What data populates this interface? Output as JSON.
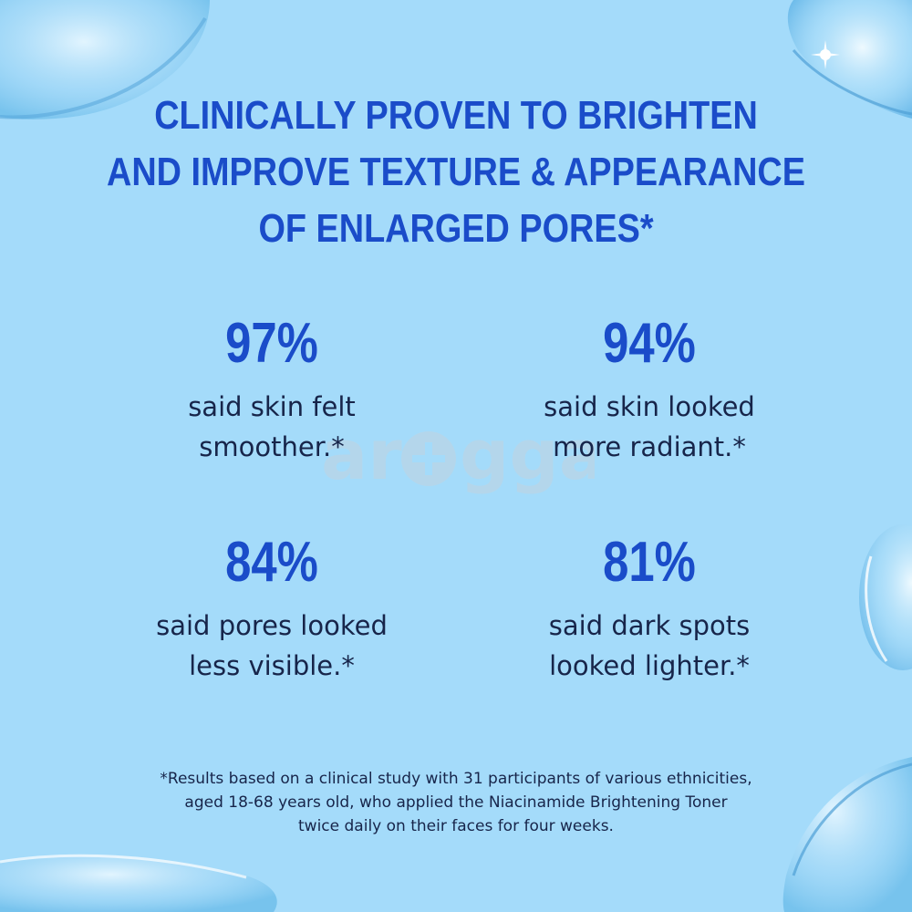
{
  "headline": {
    "lines": [
      "CLINICALLY PROVEN TO BRIGHTEN",
      "AND IMPROVE TEXTURE & APPEARANCE",
      "OF ENLARGED PORES*"
    ]
  },
  "stats": [
    {
      "value": "97%",
      "description": "said skin felt\nsmoother.*"
    },
    {
      "value": "94%",
      "description": "said skin looked\nmore radiant.*"
    },
    {
      "value": "84%",
      "description": "said pores looked\nless visible.*"
    },
    {
      "value": "81%",
      "description": "said dark spots\nlooked lighter.*"
    }
  ],
  "watermark": {
    "text": "arogga",
    "icon": "plus-circle-icon"
  },
  "footnote": {
    "lines": [
      "*Results based on a clinical study with 31 participants of various ethnicities,",
      "aged 18-68 years old, who applied the Niacinamide Brightening Toner",
      "twice daily on their faces for four weeks."
    ]
  },
  "colors": {
    "background": "#a4dbfa",
    "headline": "#1a4cc9",
    "body_text": "#17254a",
    "watermark": "#c8d2da"
  }
}
